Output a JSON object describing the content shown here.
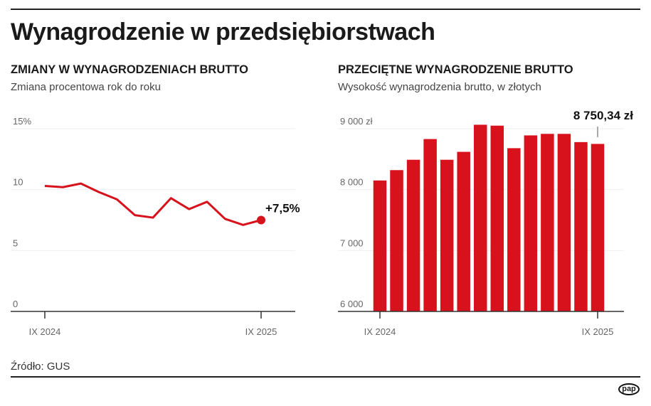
{
  "title": "Wynagrodzenie w przedsiębiorstwach",
  "source": "Źródło: GUS",
  "logo": "pap",
  "colors": {
    "accent": "#d7121c",
    "axis": "#333333",
    "grid": "#eeeeee"
  },
  "chart_data": [
    {
      "type": "line",
      "title": "ZMIANY W WYNAGRODZENIACH BRUTTO",
      "subtitle": "Zmiana procentowa rok do roku",
      "x_tick_labels": [
        "IX 2024",
        "IX 2025"
      ],
      "y_tick_labels": [
        "0",
        "5",
        "10",
        "15%"
      ],
      "y_ticks": [
        0,
        5,
        10,
        15
      ],
      "ylim": [
        0,
        15
      ],
      "values": [
        10.3,
        10.2,
        10.5,
        9.8,
        9.2,
        7.9,
        7.7,
        9.3,
        8.4,
        9.0,
        7.6,
        7.1,
        7.5
      ],
      "last_label": "+7,5%",
      "grid": true
    },
    {
      "type": "bar",
      "title": "PRZECIĘTNE WYNAGRODZENIE BRUTTO",
      "subtitle": "Wysokość wynagrodzenia brutto, w złotych",
      "x_tick_labels": [
        "IX 2024",
        "IX 2025"
      ],
      "y_tick_labels": [
        "6 000",
        "7 000",
        "8 000",
        "9 000 zł"
      ],
      "y_ticks": [
        6000,
        7000,
        8000,
        9000
      ],
      "ylim": [
        6000,
        9000
      ],
      "values": [
        8150,
        8320,
        8490,
        8830,
        8490,
        8620,
        9065,
        9050,
        8680,
        8890,
        8915,
        8915,
        8780,
        8750.34
      ],
      "last_label": "8 750,34  zł",
      "grid": true
    }
  ]
}
